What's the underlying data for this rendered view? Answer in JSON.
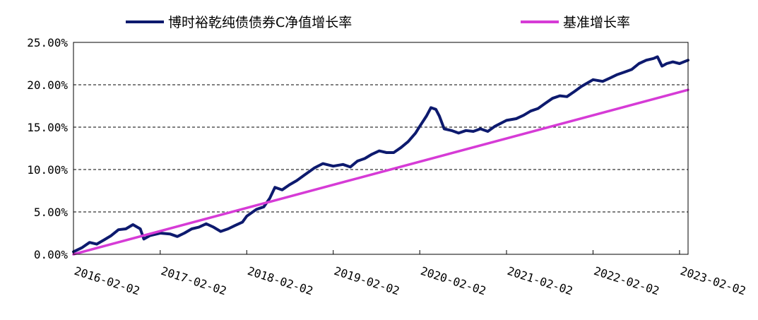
{
  "chart_data": {
    "type": "line",
    "title": "",
    "xlabel": "",
    "ylabel": "",
    "ylim": [
      0,
      25
    ],
    "y_tick_labels": [
      "0.00%",
      "5.00%",
      "10.00%",
      "15.00%",
      "20.00%",
      "25.00%"
    ],
    "y_ticks": [
      0,
      5,
      10,
      15,
      20,
      25
    ],
    "x_tick_labels": [
      "2016-02-02",
      "2017-02-02",
      "2018-02-02",
      "2019-02-02",
      "2020-02-02",
      "2021-02-02",
      "2022-02-02",
      "2023-02-02"
    ],
    "xlim": [
      "2016-02-02",
      "2023-03-10"
    ],
    "grid": "horizontal-dashed",
    "legend_position": "top",
    "series": [
      {
        "name": "博时裕乾纯债债券C净值增长率",
        "color": "#0d1a6e",
        "points": [
          [
            "2016-02-02",
            0.3
          ],
          [
            "2016-03-10",
            0.8
          ],
          [
            "2016-04-10",
            1.4
          ],
          [
            "2016-05-10",
            1.2
          ],
          [
            "2016-06-10",
            1.7
          ],
          [
            "2016-07-10",
            2.2
          ],
          [
            "2016-08-10",
            2.9
          ],
          [
            "2016-09-10",
            3.0
          ],
          [
            "2016-10-10",
            3.5
          ],
          [
            "2016-11-10",
            3.0
          ],
          [
            "2016-11-25",
            1.8
          ],
          [
            "2016-12-20",
            2.2
          ],
          [
            "2017-02-02",
            2.5
          ],
          [
            "2017-03-15",
            2.4
          ],
          [
            "2017-04-15",
            2.1
          ],
          [
            "2017-05-15",
            2.5
          ],
          [
            "2017-06-15",
            3.0
          ],
          [
            "2017-07-15",
            3.2
          ],
          [
            "2017-08-15",
            3.6
          ],
          [
            "2017-09-15",
            3.2
          ],
          [
            "2017-10-15",
            2.7
          ],
          [
            "2017-11-15",
            3.0
          ],
          [
            "2017-12-15",
            3.4
          ],
          [
            "2018-01-15",
            3.8
          ],
          [
            "2018-02-02",
            4.5
          ],
          [
            "2018-03-15",
            5.3
          ],
          [
            "2018-04-15",
            5.6
          ],
          [
            "2018-05-10",
            6.6
          ],
          [
            "2018-06-01",
            7.9
          ],
          [
            "2018-07-01",
            7.6
          ],
          [
            "2018-08-01",
            8.2
          ],
          [
            "2018-09-01",
            8.7
          ],
          [
            "2018-10-01",
            9.3
          ],
          [
            "2018-11-15",
            10.2
          ],
          [
            "2018-12-20",
            10.7
          ],
          [
            "2019-02-02",
            10.4
          ],
          [
            "2019-03-15",
            10.6
          ],
          [
            "2019-04-15",
            10.3
          ],
          [
            "2019-05-15",
            11.0
          ],
          [
            "2019-06-15",
            11.3
          ],
          [
            "2019-07-15",
            11.8
          ],
          [
            "2019-08-15",
            12.2
          ],
          [
            "2019-09-15",
            12.0
          ],
          [
            "2019-10-15",
            12.0
          ],
          [
            "2019-11-15",
            12.6
          ],
          [
            "2019-12-15",
            13.3
          ],
          [
            "2020-01-15",
            14.3
          ],
          [
            "2020-02-02",
            15.1
          ],
          [
            "2020-03-01",
            16.3
          ],
          [
            "2020-03-20",
            17.3
          ],
          [
            "2020-04-10",
            17.1
          ],
          [
            "2020-04-25",
            16.3
          ],
          [
            "2020-05-15",
            14.8
          ],
          [
            "2020-06-15",
            14.6
          ],
          [
            "2020-07-15",
            14.3
          ],
          [
            "2020-08-15",
            14.6
          ],
          [
            "2020-09-15",
            14.5
          ],
          [
            "2020-10-15",
            14.8
          ],
          [
            "2020-11-15",
            14.5
          ],
          [
            "2020-12-15",
            15.1
          ],
          [
            "2021-02-02",
            15.8
          ],
          [
            "2021-03-15",
            16.0
          ],
          [
            "2021-04-15",
            16.4
          ],
          [
            "2021-05-15",
            16.9
          ],
          [
            "2021-06-15",
            17.2
          ],
          [
            "2021-07-15",
            17.8
          ],
          [
            "2021-08-15",
            18.4
          ],
          [
            "2021-09-15",
            18.7
          ],
          [
            "2021-10-15",
            18.6
          ],
          [
            "2021-11-15",
            19.2
          ],
          [
            "2021-12-15",
            19.8
          ],
          [
            "2022-01-15",
            20.3
          ],
          [
            "2022-02-02",
            20.6
          ],
          [
            "2022-03-15",
            20.4
          ],
          [
            "2022-04-15",
            20.8
          ],
          [
            "2022-05-15",
            21.2
          ],
          [
            "2022-06-15",
            21.5
          ],
          [
            "2022-07-15",
            21.8
          ],
          [
            "2022-08-15",
            22.5
          ],
          [
            "2022-09-15",
            22.9
          ],
          [
            "2022-10-15",
            23.1
          ],
          [
            "2022-11-01",
            23.3
          ],
          [
            "2022-11-20",
            22.2
          ],
          [
            "2022-12-10",
            22.5
          ],
          [
            "2023-01-05",
            22.7
          ],
          [
            "2023-02-02",
            22.5
          ],
          [
            "2023-03-10",
            22.9
          ]
        ]
      },
      {
        "name": "基准增长率",
        "color": "#d63bd6",
        "points": [
          [
            "2016-02-02",
            0.0
          ],
          [
            "2023-03-10",
            19.4
          ]
        ]
      }
    ]
  }
}
